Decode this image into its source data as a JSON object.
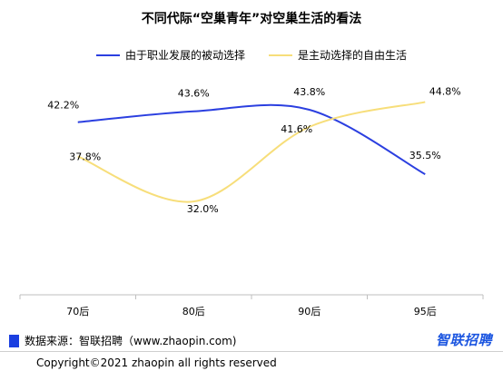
{
  "chart_data": {
    "type": "line",
    "title": "不同代际“空巢青年”对空巢生活的看法",
    "categories": [
      "70后",
      "80后",
      "90后",
      "95后"
    ],
    "series": [
      {
        "name": "由于职业发展的被动选择",
        "values": [
          42.2,
          43.6,
          43.8,
          35.5
        ],
        "labels": [
          "42.2%",
          "43.6%",
          "43.8%",
          "35.5%"
        ],
        "color": "#2b3fe0"
      },
      {
        "name": "是主动选择的自由生活",
        "values": [
          37.8,
          32.0,
          41.6,
          44.8
        ],
        "labels": [
          "37.8%",
          "32.0%",
          "41.6%",
          "44.8%"
        ],
        "color": "#f7de7a"
      }
    ],
    "ylim": [
      20,
      48
    ],
    "smooth": true,
    "grid": false,
    "legend_position": "top-center"
  },
  "source": {
    "text": "数据来源：智联招聘（www.zhaopin.com)",
    "mark_color": "#1b3fe0"
  },
  "brand": {
    "text": "智联招聘",
    "color": "#1b55e0"
  },
  "footer": {
    "copyright": "Copyright©2021 zhaopin all rights reserved"
  }
}
